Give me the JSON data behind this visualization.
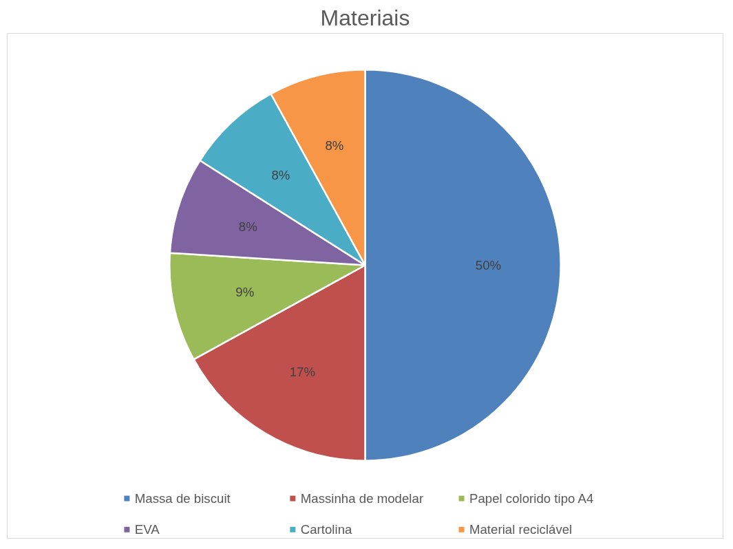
{
  "chart_data": {
    "type": "pie",
    "title": "Materiais",
    "categories": [
      "Massa de biscuit",
      "Massinha de modelar",
      "Papel colorido tipo A4",
      "EVA",
      "Cartolina",
      "Material reciclável"
    ],
    "values": [
      50,
      17,
      9,
      8,
      8,
      8
    ],
    "colors": [
      "#4f81bd",
      "#c0504d",
      "#9bbb59",
      "#8064a2",
      "#4bacc6",
      "#f79646"
    ],
    "value_labels": [
      "50%",
      "17%",
      "9%",
      "8%",
      "8%",
      "8%"
    ],
    "legend": "bottom"
  }
}
